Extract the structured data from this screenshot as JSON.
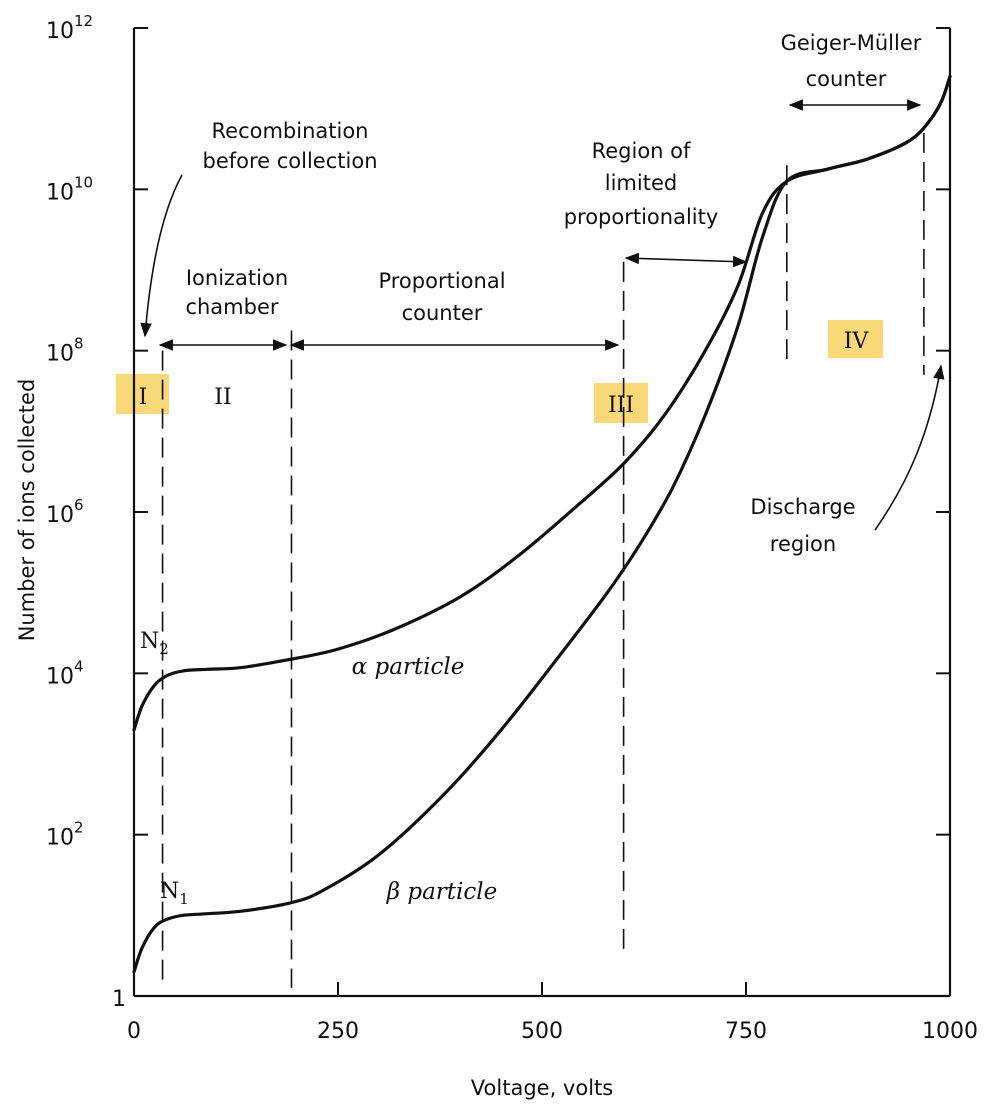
{
  "chart_data": {
    "type": "line",
    "title": "",
    "xlabel": "Voltage, volts",
    "ylabel": "Number of ions collected",
    "xlim": [
      0,
      1000
    ],
    "ylim_log10": [
      0,
      12
    ],
    "yscale": "log",
    "grid": false,
    "legend": "none",
    "x_ticks": [
      {
        "value": 0,
        "label": "0"
      },
      {
        "value": 250,
        "label": "250"
      },
      {
        "value": 500,
        "label": "500"
      },
      {
        "value": 750,
        "label": "750"
      },
      {
        "value": 1000,
        "label": "1000"
      }
    ],
    "y_ticks": [
      {
        "exp": 0,
        "base": "1",
        "sup": ""
      },
      {
        "exp": 2,
        "base": "10",
        "sup": "2"
      },
      {
        "exp": 4,
        "base": "10",
        "sup": "4"
      },
      {
        "exp": 6,
        "base": "10",
        "sup": "6"
      },
      {
        "exp": 8,
        "base": "10",
        "sup": "8"
      },
      {
        "exp": 10,
        "base": "10",
        "sup": "10"
      },
      {
        "exp": 12,
        "base": "10",
        "sup": "12"
      }
    ],
    "series": [
      {
        "name": "α particle",
        "x": [
          0,
          10,
          25,
          40,
          60,
          90,
          130,
          190,
          250,
          320,
          400,
          470,
          540,
          600,
          650,
          700,
          740,
          770,
          800,
          850,
          900,
          950,
          975,
          990,
          1000
        ],
        "log10_y": [
          3.3,
          3.6,
          3.85,
          3.97,
          4.03,
          4.05,
          4.07,
          4.17,
          4.3,
          4.55,
          4.95,
          5.45,
          6.05,
          6.6,
          7.2,
          8.0,
          8.8,
          9.7,
          10.1,
          10.25,
          10.38,
          10.6,
          10.85,
          11.1,
          11.4
        ]
      },
      {
        "name": "β particle",
        "x": [
          0,
          10,
          25,
          40,
          60,
          90,
          130,
          190,
          230,
          300,
          380,
          450,
          520,
          580,
          620,
          660,
          700,
          740,
          770,
          800,
          850,
          900,
          950,
          975,
          990,
          1000
        ],
        "log10_y": [
          0.3,
          0.6,
          0.85,
          0.95,
          1.0,
          1.02,
          1.05,
          1.15,
          1.3,
          1.75,
          2.5,
          3.3,
          4.2,
          5.0,
          5.6,
          6.3,
          7.2,
          8.3,
          9.4,
          10.1,
          10.25,
          10.38,
          10.6,
          10.85,
          11.1,
          11.4
        ]
      }
    ],
    "region_boundaries": [
      {
        "x": 35,
        "log10_top": 8.0,
        "log10_bottom": 0.2
      },
      {
        "x": 193,
        "log10_top": 8.25,
        "log10_bottom": 0.1
      },
      {
        "x": 600,
        "log10_top": 9.1,
        "log10_bottom": 0.55
      },
      {
        "x": 800,
        "log10_top": 10.3,
        "log10_bottom": 7.8
      },
      {
        "x": 968,
        "log10_top": 10.7,
        "log10_bottom": 7.7
      }
    ],
    "regions": [
      {
        "id": "I",
        "label": "I",
        "highlighted": true,
        "x_range": [
          0,
          35
        ]
      },
      {
        "id": "II",
        "label": "II",
        "highlighted": false,
        "x_range": [
          35,
          193
        ]
      },
      {
        "id": "III",
        "label": "III",
        "highlighted": true,
        "x_range": [
          193,
          600
        ]
      },
      {
        "id": "IV",
        "label": "IV",
        "highlighted": true,
        "x_range": [
          800,
          968
        ]
      }
    ],
    "annotations": {
      "recombination_line1": "Recombination",
      "recombination_line2": "before collection",
      "ionization_line1": "Ionization",
      "ionization_line2": "chamber",
      "proportional_line1": "Proportional",
      "proportional_line2": "counter",
      "limited_line1": "Region of",
      "limited_line2": "limited",
      "limited_line3": "proportionality",
      "geiger_line1": "Geiger-Müller",
      "geiger_line2": "counter",
      "discharge_line1": "Discharge",
      "discharge_line2": "region",
      "alpha_label": "α particle",
      "beta_label": "β particle",
      "n2_base": "N",
      "n2_sub": "2",
      "n1_base": "N",
      "n1_sub": "1"
    },
    "highlight_color": "#f9d87a",
    "line_color": "#111111"
  }
}
